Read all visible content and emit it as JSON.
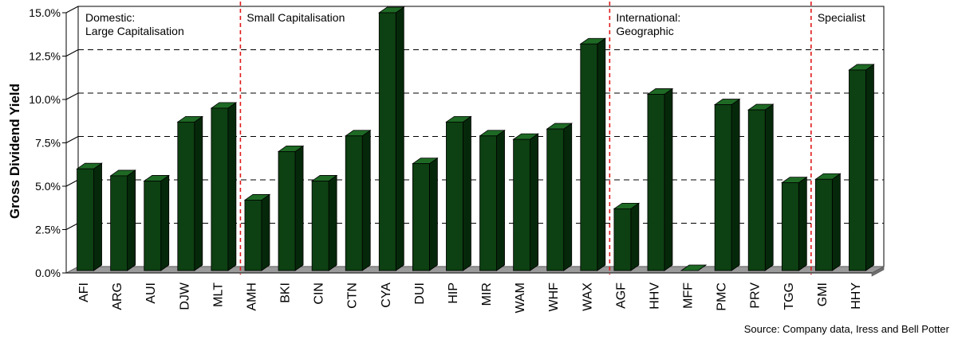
{
  "chart_data": {
    "type": "bar",
    "ylabel": "Gross Dividend Yield",
    "ylim": [
      0,
      15
    ],
    "yticks": [
      "0.0%",
      "2.5%",
      "5.0%",
      "7.5%",
      "10.0%",
      "12.5%",
      "15.0%"
    ],
    "ytick_values": [
      0,
      2.5,
      5,
      7.5,
      10,
      12.5,
      15
    ],
    "grid": "dashed horizontal",
    "categories": [
      "AFI",
      "ARG",
      "AUI",
      "DJW",
      "MLT",
      "AMH",
      "BKI",
      "CIN",
      "CTN",
      "CYA",
      "DUI",
      "HIP",
      "MIR",
      "WAM",
      "WHF",
      "WAX",
      "AGF",
      "HHV",
      "MFF",
      "PMC",
      "PRV",
      "TGG",
      "GMI",
      "HHY"
    ],
    "values": [
      6.0,
      5.6,
      5.3,
      8.7,
      9.5,
      4.2,
      7.0,
      5.3,
      7.9,
      15.0,
      6.3,
      8.7,
      7.9,
      7.7,
      8.3,
      13.2,
      3.7,
      10.3,
      0.0,
      9.7,
      9.4,
      5.2,
      5.4,
      11.7
    ],
    "segments": [
      {
        "label_lines": [
          "Domestic:",
          "Large Capitalisation"
        ],
        "start": 0,
        "end": 5
      },
      {
        "label_lines": [
          "Small Capitalisation"
        ],
        "start": 5,
        "end": 16
      },
      {
        "label_lines": [
          "International:",
          "Geographic"
        ],
        "start": 16,
        "end": 22
      },
      {
        "label_lines": [
          "Specialist"
        ],
        "start": 22,
        "end": 24
      }
    ],
    "source": "Source: Company data, Iress and Bell Potter"
  },
  "colors": {
    "bar_front": "#0d4012",
    "bar_side": "#06280a",
    "bar_top": "#1e6a25",
    "floor": "#9a9a9a",
    "floor_side": "#6e6e6e",
    "divider": "#e01a1a",
    "grid": "#000000"
  }
}
